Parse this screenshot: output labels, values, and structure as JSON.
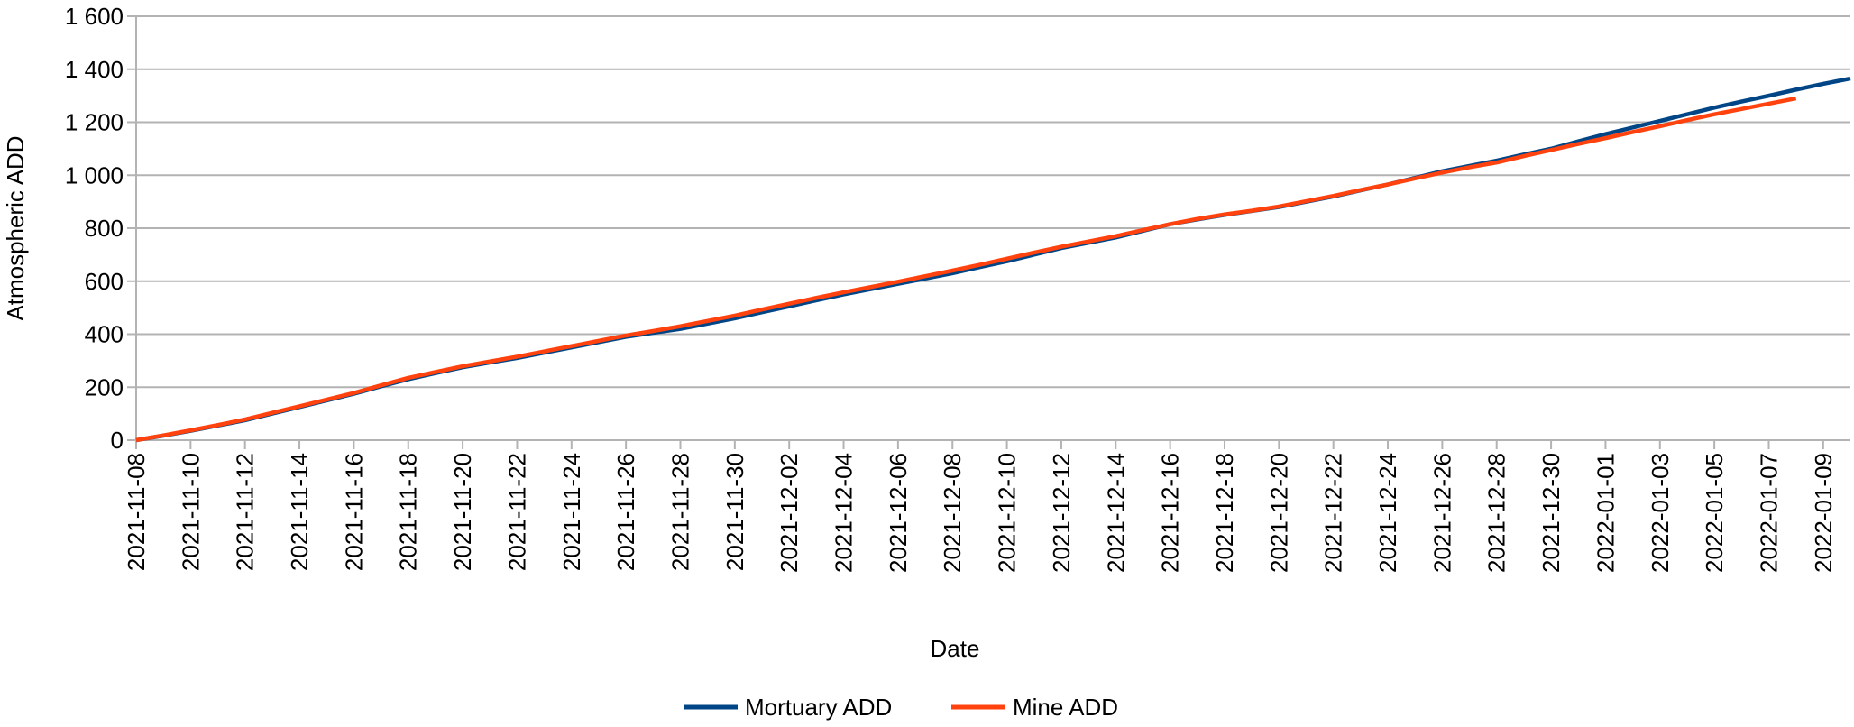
{
  "chart_data": {
    "type": "line",
    "x_label": "Date",
    "y_label": "Atmospheric ADD",
    "x": [
      "2021-11-08",
      "2021-11-09",
      "2021-11-10",
      "2021-11-11",
      "2021-11-12",
      "2021-11-13",
      "2021-11-14",
      "2021-11-15",
      "2021-11-16",
      "2021-11-17",
      "2021-11-18",
      "2021-11-19",
      "2021-11-20",
      "2021-11-21",
      "2021-11-22",
      "2021-11-23",
      "2021-11-24",
      "2021-11-25",
      "2021-11-26",
      "2021-11-27",
      "2021-11-28",
      "2021-11-29",
      "2021-11-30",
      "2021-12-01",
      "2021-12-02",
      "2021-12-03",
      "2021-12-04",
      "2021-12-05",
      "2021-12-06",
      "2021-12-07",
      "2021-12-08",
      "2021-12-09",
      "2021-12-10",
      "2021-12-11",
      "2021-12-12",
      "2021-12-13",
      "2021-12-14",
      "2021-12-15",
      "2021-12-16",
      "2021-12-17",
      "2021-12-18",
      "2021-12-19",
      "2021-12-20",
      "2021-12-21",
      "2021-12-22",
      "2021-12-23",
      "2021-12-24",
      "2021-12-25",
      "2021-12-26",
      "2021-12-27",
      "2021-12-28",
      "2021-12-29",
      "2021-12-30",
      "2021-12-31",
      "2022-01-01",
      "2022-01-02",
      "2022-01-03",
      "2022-01-04",
      "2022-01-05",
      "2022-01-06",
      "2022-01-07",
      "2022-01-08",
      "2022-01-09",
      "2022-01-10"
    ],
    "series": [
      {
        "name": "Mortuary ADD",
        "color": "#004586",
        "values": [
          0,
          17,
          35,
          55,
          75,
          100,
          125,
          150,
          175,
          203,
          230,
          253,
          275,
          293,
          310,
          330,
          350,
          370,
          390,
          405,
          420,
          440,
          460,
          483,
          505,
          528,
          550,
          570,
          590,
          610,
          630,
          653,
          675,
          700,
          725,
          745,
          765,
          790,
          815,
          833,
          850,
          865,
          880,
          900,
          920,
          943,
          965,
          990,
          1015,
          1035,
          1055,
          1078,
          1100,
          1128,
          1155,
          1180,
          1205,
          1230,
          1255,
          1278,
          1300,
          1323,
          1345,
          1365
        ]
      },
      {
        "name": "Mine ADD",
        "color": "#ff420e",
        "values": [
          0,
          18,
          37,
          57,
          78,
          103,
          128,
          153,
          178,
          207,
          235,
          257,
          279,
          297,
          315,
          335,
          355,
          375,
          395,
          412,
          430,
          450,
          470,
          493,
          515,
          537,
          558,
          578,
          598,
          619,
          640,
          662,
          685,
          708,
          730,
          750,
          770,
          793,
          815,
          835,
          852,
          866,
          882,
          902,
          922,
          944,
          965,
          988,
          1010,
          1030,
          1048,
          1072,
          1095,
          1118,
          1140,
          1163,
          1185,
          1208,
          1230,
          1250,
          1270,
          1290,
          null,
          null
        ]
      }
    ],
    "xlim": [
      "2021-11-08",
      "2022-01-10"
    ],
    "xticks": [
      "2021-11-08",
      "2021-11-10",
      "2021-11-12",
      "2021-11-14",
      "2021-11-16",
      "2021-11-18",
      "2021-11-20",
      "2021-11-22",
      "2021-11-24",
      "2021-11-26",
      "2021-11-28",
      "2021-11-30",
      "2021-12-02",
      "2021-12-04",
      "2021-12-06",
      "2021-12-08",
      "2021-12-10",
      "2021-12-12",
      "2021-12-14",
      "2021-12-16",
      "2021-12-18",
      "2021-12-20",
      "2021-12-22",
      "2021-12-24",
      "2021-12-26",
      "2021-12-28",
      "2021-12-30",
      "2022-01-01",
      "2022-01-03",
      "2022-01-05",
      "2022-01-07",
      "2022-01-09"
    ],
    "ylim": [
      0,
      1600
    ],
    "yticks": [
      0,
      200,
      400,
      600,
      800,
      {
        "value": 1000,
        "label": "1 000"
      },
      {
        "value": 1200,
        "label": "1 200"
      },
      {
        "value": 1400,
        "label": "1 400"
      },
      {
        "value": 1600,
        "label": "1 600"
      }
    ],
    "grid": true,
    "legend": "bottom"
  }
}
